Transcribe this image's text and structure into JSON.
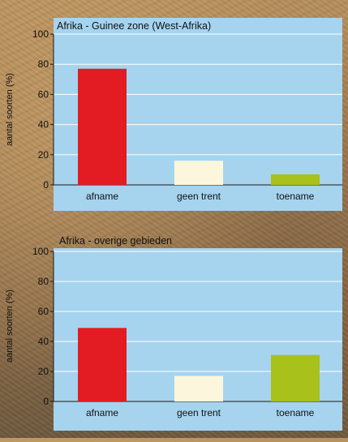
{
  "chart_data": [
    {
      "type": "bar",
      "title": "Afrika - Guinee zone (West-Afrika)",
      "ylabel": "aantal soorten (%)",
      "xlabel": "",
      "categories": [
        "afname",
        "geen trent",
        "toename"
      ],
      "values": [
        77,
        16,
        7
      ],
      "bar_colors": [
        "#e31b23",
        "#fcf7dc",
        "#a8c11b"
      ],
      "plot_background": "#a6d4ef",
      "ylim": [
        0,
        100
      ],
      "yticks": [
        0,
        20,
        40,
        60,
        80,
        100
      ],
      "grid": true
    },
    {
      "type": "bar",
      "title": "Afrika - overige gebieden",
      "ylabel": "aantal soorten (%)",
      "xlabel": "",
      "categories": [
        "afname",
        "geen trent",
        "toename"
      ],
      "values": [
        49,
        17,
        31
      ],
      "bar_colors": [
        "#e31b23",
        "#fcf7dc",
        "#a8c11b"
      ],
      "plot_background": "#a6d4ef",
      "ylim": [
        0,
        100
      ],
      "yticks": [
        0,
        20,
        40,
        60,
        80,
        100
      ],
      "grid": true
    }
  ]
}
